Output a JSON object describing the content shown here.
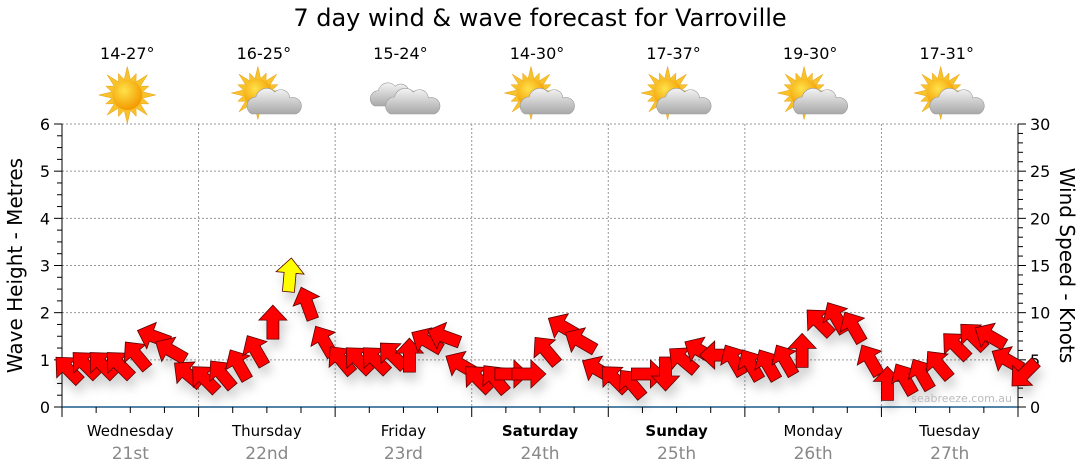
{
  "chart_data": {
    "type": "scatter",
    "title": "7 day wind & wave forecast for Varroville",
    "ylabel": "Wave Height - Metres",
    "y2label": "Wind Speed - Knots",
    "ylim": [
      0,
      6
    ],
    "y2lim": [
      0,
      30
    ],
    "yticks": [
      "0",
      "1",
      "2",
      "3",
      "4",
      "5",
      "6"
    ],
    "y2ticks": [
      "0",
      "5",
      "10",
      "15",
      "20",
      "25",
      "30"
    ],
    "grid": true,
    "watermark": "seabreeze.com.au",
    "arrow_colors": {
      "normal": "#ff0000",
      "strong": "#ffff00",
      "strong_threshold_knots": 12
    },
    "days": [
      {
        "name": "Wednesday",
        "date": "21st",
        "weekend": false,
        "temp": "14-27°",
        "icon": "sun-icon"
      },
      {
        "name": "Thursday",
        "date": "22nd",
        "weekend": false,
        "temp": "16-25°",
        "icon": "partly-cloudy-icon"
      },
      {
        "name": "Friday",
        "date": "23rd",
        "weekend": false,
        "temp": "15-24°",
        "icon": "cloudy-icon"
      },
      {
        "name": "Saturday",
        "date": "24th",
        "weekend": true,
        "temp": "14-30°",
        "icon": "partly-cloudy-icon"
      },
      {
        "name": "Sunday",
        "date": "25th",
        "weekend": true,
        "temp": "17-37°",
        "icon": "partly-cloudy-icon"
      },
      {
        "name": "Monday",
        "date": "26th",
        "weekend": false,
        "temp": "19-30°",
        "icon": "partly-cloudy-icon"
      },
      {
        "name": "Tuesday",
        "date": "27th",
        "weekend": false,
        "temp": "17-31°",
        "icon": "partly-cloudy-icon"
      }
    ],
    "wind_interval_hours": 3,
    "wind": [
      {
        "knots": 4,
        "dir": 315
      },
      {
        "knots": 4.5,
        "dir": 315
      },
      {
        "knots": 4.5,
        "dir": 315
      },
      {
        "knots": 4.5,
        "dir": 315
      },
      {
        "knots": 5.5,
        "dir": 320
      },
      {
        "knots": 7.5,
        "dir": 290
      },
      {
        "knots": 6,
        "dir": 300
      },
      {
        "knots": 3.5,
        "dir": 310
      },
      {
        "knots": 3,
        "dir": 315
      },
      {
        "knots": 3.5,
        "dir": 320
      },
      {
        "knots": 4.5,
        "dir": 330
      },
      {
        "knots": 6,
        "dir": 330
      },
      {
        "knots": 9,
        "dir": 0
      },
      {
        "knots": 14,
        "dir": 5
      },
      {
        "knots": 11,
        "dir": 340
      },
      {
        "knots": 7,
        "dir": 330
      },
      {
        "knots": 5,
        "dir": 320
      },
      {
        "knots": 5,
        "dir": 315
      },
      {
        "knots": 5,
        "dir": 315
      },
      {
        "knots": 5.5,
        "dir": 315
      },
      {
        "knots": 5.5,
        "dir": 0
      },
      {
        "knots": 7,
        "dir": 300
      },
      {
        "knots": 7.5,
        "dir": 290
      },
      {
        "knots": 4.5,
        "dir": 300
      },
      {
        "knots": 3,
        "dir": 315
      },
      {
        "knots": 3,
        "dir": 320
      },
      {
        "knots": 3.5,
        "dir": 90
      },
      {
        "knots": 3.5,
        "dir": 90
      },
      {
        "knots": 6,
        "dir": 320
      },
      {
        "knots": 8.5,
        "dir": 300
      },
      {
        "knots": 7,
        "dir": 300
      },
      {
        "knots": 4,
        "dir": 300
      },
      {
        "knots": 3,
        "dir": 315
      },
      {
        "knots": 2.5,
        "dir": 320
      },
      {
        "knots": 3.5,
        "dir": 90
      },
      {
        "knots": 3.5,
        "dir": 180
      },
      {
        "knots": 5,
        "dir": 310
      },
      {
        "knots": 6,
        "dir": 300
      },
      {
        "knots": 5.5,
        "dir": 270
      },
      {
        "knots": 5,
        "dir": 330
      },
      {
        "knots": 4.5,
        "dir": 330
      },
      {
        "knots": 4.5,
        "dir": 330
      },
      {
        "knots": 5,
        "dir": 330
      },
      {
        "knots": 6,
        "dir": 0
      },
      {
        "knots": 9,
        "dir": 315
      },
      {
        "knots": 9.5,
        "dir": 330
      },
      {
        "knots": 8.5,
        "dir": 330
      },
      {
        "knots": 5,
        "dir": 330
      },
      {
        "knots": 2.5,
        "dir": 0
      },
      {
        "knots": 3,
        "dir": 330
      },
      {
        "knots": 3.5,
        "dir": 330
      },
      {
        "knots": 4.5,
        "dir": 320
      },
      {
        "knots": 6.5,
        "dir": 315
      },
      {
        "knots": 7.5,
        "dir": 315
      },
      {
        "knots": 7.5,
        "dir": 300
      },
      {
        "knots": 5,
        "dir": 300
      },
      {
        "knots": 3.5,
        "dir": 225
      }
    ]
  }
}
